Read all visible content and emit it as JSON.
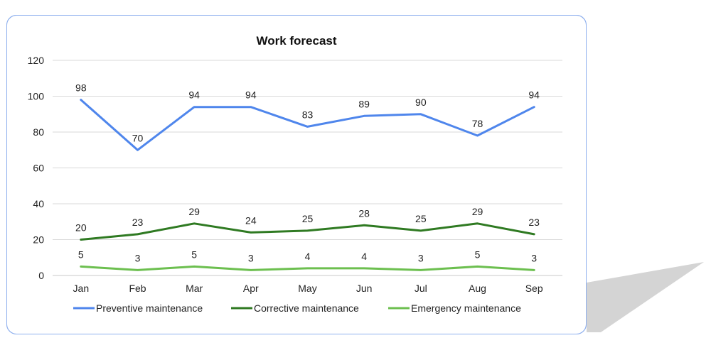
{
  "chart_data": {
    "type": "line",
    "title": "Work forecast",
    "xlabel": "",
    "ylabel": "",
    "categories": [
      "Jan",
      "Feb",
      "Mar",
      "Apr",
      "May",
      "Jun",
      "Jul",
      "Aug",
      "Sep"
    ],
    "ylim": [
      0,
      120
    ],
    "yticks": [
      0,
      20,
      40,
      60,
      80,
      100,
      120
    ],
    "grid": true,
    "legend": "bottom",
    "series": [
      {
        "name": "Preventive maintenance",
        "color": "#4f86ec",
        "values": [
          98,
          70,
          94,
          94,
          83,
          89,
          90,
          78,
          94
        ]
      },
      {
        "name": "Corrective maintenance",
        "color": "#2f7a22",
        "values": [
          20,
          23,
          29,
          24,
          25,
          28,
          25,
          29,
          23
        ]
      },
      {
        "name": "Emergency maintenance",
        "color": "#6cbf4f",
        "values": [
          5,
          3,
          5,
          3,
          4,
          4,
          3,
          5,
          3
        ]
      }
    ]
  }
}
